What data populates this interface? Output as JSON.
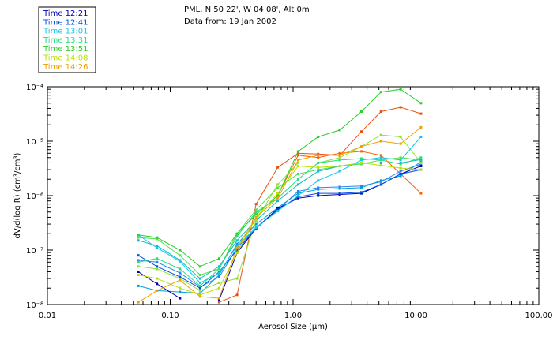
{
  "header": {
    "line1": "PML, N 50 22', W 04 08', Alt 0m",
    "line2": "Data from: 19 Jan 2002"
  },
  "chart_data": {
    "type": "line",
    "xscale": "log",
    "yscale": "log",
    "xlabel": "Aerosol Size (µm)",
    "ylabel": "dV/d(log R) (cm³/cm³)",
    "xlim": [
      0.01,
      100
    ],
    "ylim": [
      1e-08,
      0.0001
    ],
    "xticks": [
      {
        "v": 0.01,
        "label": "0.01"
      },
      {
        "v": 0.1,
        "label": "0.10"
      },
      {
        "v": 1,
        "label": "1.00"
      },
      {
        "v": 10,
        "label": "10.00"
      },
      {
        "v": 100,
        "label": "100.00"
      }
    ],
    "yticks": [
      {
        "v": 1e-08,
        "label": "10⁻⁸"
      },
      {
        "v": 1e-07,
        "label": "10⁻⁷"
      },
      {
        "v": 1e-06,
        "label": "10⁻⁶"
      },
      {
        "v": 1e-05,
        "label": "10⁻⁵"
      },
      {
        "v": 0.0001,
        "label": "10⁻⁴"
      }
    ],
    "x": [
      0.055,
      0.078,
      0.12,
      0.175,
      0.25,
      0.35,
      0.5,
      0.75,
      1.1,
      1.6,
      2.4,
      3.6,
      5.2,
      7.5,
      11
    ],
    "series": [
      {
        "name": "Time 12:21",
        "color": "#0000b0",
        "values": [
          4e-08,
          2.4e-08,
          1.3e-08,
          null,
          1.2e-08,
          9e-08,
          2.5e-07,
          5.8e-07,
          9e-07,
          1e-06,
          1.05e-06,
          1.1e-06,
          1.6e-06,
          2.5e-06,
          3.5e-06
        ]
      },
      {
        "name": "Time 12:41",
        "color": "#0050e0",
        "values": [
          8e-08,
          5e-08,
          3.2e-08,
          2e-08,
          4e-08,
          1e-07,
          2.5e-07,
          5.5e-07,
          9.5e-07,
          1.1e-06,
          1.1e-06,
          1.15e-06,
          1.6e-06,
          2.5e-06,
          3e-06
        ]
      },
      {
        "name": "Time 13:01",
        "color": "#10c8e8",
        "values": [
          1.9e-07,
          1.1e-07,
          6.2e-08,
          2.5e-08,
          3.8e-08,
          1.2e-07,
          2.6e-07,
          5.2e-07,
          1e-06,
          1.9e-06,
          2.8e-06,
          4.5e-06,
          5e-06,
          4.5e-06,
          1.2e-05
        ]
      },
      {
        "name": "Time 13:31",
        "color": "#20e080",
        "values": [
          6e-08,
          7e-08,
          4.5e-08,
          2.2e-08,
          4.5e-08,
          1.8e-07,
          5e-07,
          9e-07,
          2e-06,
          4e-06,
          4.5e-06,
          4.8e-06,
          4.5e-06,
          3.8e-06,
          5e-06
        ]
      },
      {
        "name": "Time 13:51",
        "color": "#28d028",
        "values": [
          1.9e-07,
          1.7e-07,
          1e-07,
          5e-08,
          7e-08,
          2e-07,
          4.5e-07,
          1e-06,
          6.5e-06,
          1.2e-05,
          1.6e-05,
          3.5e-05,
          8e-05,
          9e-05,
          5e-05
        ]
      },
      {
        "name": "Time 14:08",
        "color": "#b8e000",
        "values": [
          3.5e-08,
          3e-08,
          2e-08,
          1.5e-08,
          2e-08,
          9e-08,
          4e-07,
          1.1e-06,
          3.5e-06,
          3.3e-06,
          3.5e-06,
          4e-06,
          3.6e-06,
          3.2e-06,
          3e-06
        ]
      },
      {
        "name": "Time 14:26",
        "color": "#f0a000",
        "values": [
          1.1e-08,
          1.8e-08,
          2.8e-08,
          1.4e-08,
          1.3e-08,
          1.1e-07,
          4e-07,
          9e-07,
          4.5e-06,
          5.5e-06,
          5.5e-06,
          8e-06,
          1e-05,
          9e-06,
          1.8e-05
        ]
      }
    ],
    "extra_series": [
      {
        "color": "#e85010",
        "values": [
          null,
          null,
          null,
          null,
          1.1e-08,
          1.5e-08,
          7e-07,
          3.3e-06,
          6e-06,
          5.8e-06,
          5.5e-06,
          1.5e-05,
          3.5e-05,
          4.2e-05,
          3.2e-05
        ]
      },
      {
        "color": "#ff6000",
        "values": [
          null,
          null,
          null,
          null,
          null,
          null,
          null,
          1e-06,
          5.5e-06,
          5e-06,
          6e-06,
          6.5e-06,
          5.5e-06,
          2.5e-06,
          1.1e-06
        ]
      },
      {
        "color": "#3080f0",
        "values": [
          6.5e-08,
          6e-08,
          3.8e-08,
          2.1e-08,
          3.2e-08,
          1.1e-07,
          2.6e-07,
          5.5e-07,
          1.2e-06,
          1.4e-06,
          1.45e-06,
          1.5e-06,
          1.8e-06,
          2.8e-06,
          3.8e-06
        ]
      },
      {
        "color": "#00a0d8",
        "values": [
          2.2e-08,
          1.8e-08,
          1.7e-08,
          1.6e-08,
          3.5e-08,
          1.3e-07,
          3e-07,
          6e-07,
          1.1e-06,
          1.3e-06,
          1.35e-06,
          1.4e-06,
          1.9e-06,
          2.3e-06,
          4.2e-06
        ]
      },
      {
        "color": "#50e050",
        "values": [
          1.7e-07,
          1.6e-07,
          8e-08,
          3.5e-08,
          4.5e-08,
          2e-07,
          5.5e-07,
          1.4e-06,
          2.5e-06,
          3e-06,
          3.5e-06,
          3.8e-06,
          4.5e-06,
          5e-06,
          4.5e-06
        ]
      },
      {
        "color": "#10b8c8",
        "values": [
          1.5e-07,
          1.2e-07,
          6.5e-08,
          3e-08,
          5e-08,
          1.5e-07,
          3.5e-07,
          8e-07,
          1.6e-06,
          2.8e-06,
          3.5e-06,
          4e-06,
          4e-06,
          4e-06,
          4.6e-06
        ]
      },
      {
        "color": "#90e030",
        "values": [
          5e-08,
          4.5e-08,
          3e-08,
          1.8e-08,
          2.5e-08,
          3e-08,
          3.5e-07,
          1.6e-06,
          4e-06,
          4e-06,
          5e-06,
          8e-06,
          1.3e-05,
          1.2e-05,
          4e-06
        ]
      }
    ]
  }
}
